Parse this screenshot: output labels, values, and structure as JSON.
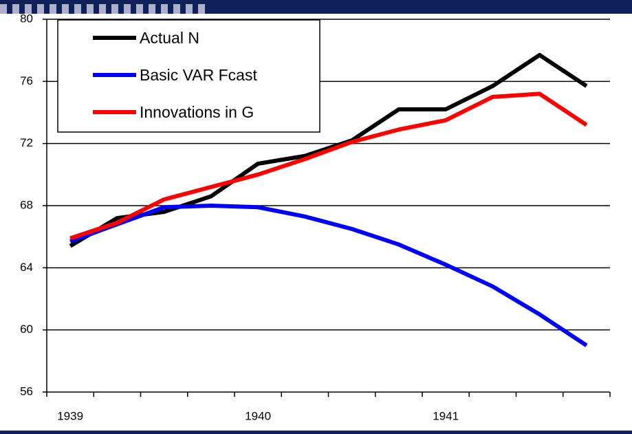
{
  "chart_data": {
    "type": "line",
    "categories": [
      "1939",
      null,
      null,
      null,
      "1940",
      null,
      null,
      null,
      "1941",
      null,
      null,
      null
    ],
    "series": [
      {
        "name": "Actual N",
        "color": "#000000",
        "values": [
          65.4,
          67.2,
          67.6,
          68.6,
          70.7,
          71.2,
          72.2,
          74.2,
          74.2,
          75.7,
          77.7,
          75.7
        ]
      },
      {
        "name": "Basic VAR Fcast",
        "color": "#0000ff",
        "values": [
          65.7,
          66.8,
          67.9,
          68.0,
          67.9,
          67.3,
          66.5,
          65.5,
          64.2,
          62.8,
          61.0,
          59.0
        ]
      },
      {
        "name": "Innovations in G",
        "color": "#ff0000",
        "values": [
          65.9,
          66.9,
          68.4,
          69.2,
          70.0,
          71.0,
          72.1,
          72.9,
          73.5,
          75.0,
          75.2,
          73.2
        ]
      }
    ],
    "ylim": [
      56,
      80
    ],
    "yticks": [
      56,
      60,
      64,
      68,
      72,
      76,
      80
    ],
    "grid": true,
    "legend": "upper left"
  }
}
